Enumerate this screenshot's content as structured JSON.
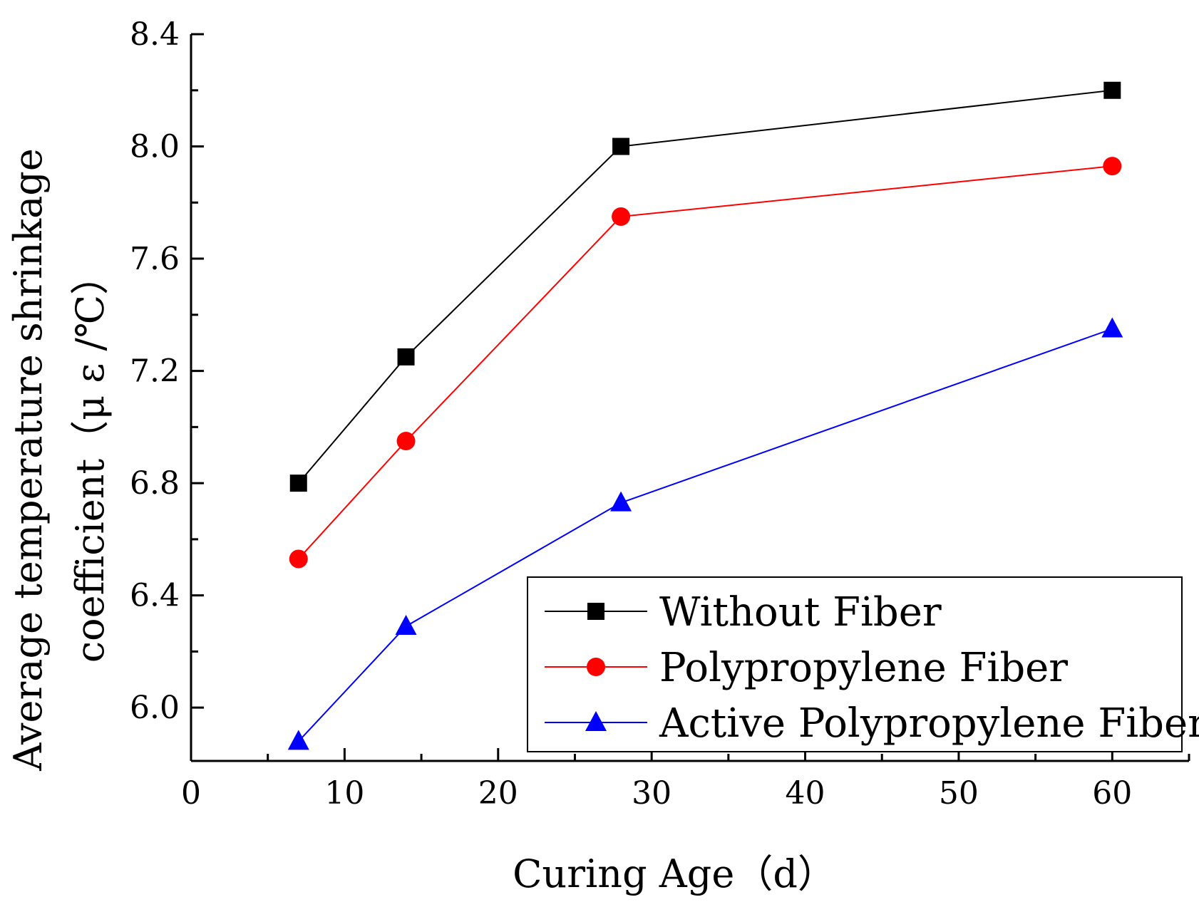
{
  "chart_data": {
    "type": "line",
    "title": "",
    "xlabel": "Curing Age（d）",
    "ylabel_lines": [
      "Average temperature shrinkage",
      "coefficient（μ ε /℃）"
    ],
    "xlim": [
      0,
      65
    ],
    "ylim": [
      5.81,
      8.4
    ],
    "x_ticks": [
      0,
      10,
      20,
      30,
      40,
      50,
      60
    ],
    "x_tick_labels": [
      "0",
      "10",
      "20",
      "30",
      "40",
      "50",
      "60"
    ],
    "y_ticks": [
      6.0,
      6.4,
      6.8,
      7.2,
      7.6,
      8.0,
      8.4
    ],
    "y_tick_labels": [
      "6.0",
      "6.4",
      "6.8",
      "7.2",
      "7.6",
      "8.0",
      "8.4"
    ],
    "grid": false,
    "legend_position": "bottom-right",
    "x": [
      7,
      14,
      28,
      60
    ],
    "series": [
      {
        "name": "Without Fiber",
        "color": "#000000",
        "marker": "square",
        "values": [
          6.8,
          7.25,
          8.0,
          8.2
        ]
      },
      {
        "name": "Polypropylene Fiber",
        "color": "#ff0000",
        "marker": "circle",
        "values": [
          6.53,
          6.95,
          7.75,
          7.93
        ]
      },
      {
        "name": "Active Polypropylene Fiber",
        "color": "#0000ff",
        "marker": "triangle",
        "values": [
          5.88,
          6.29,
          6.73,
          7.35
        ]
      }
    ]
  }
}
